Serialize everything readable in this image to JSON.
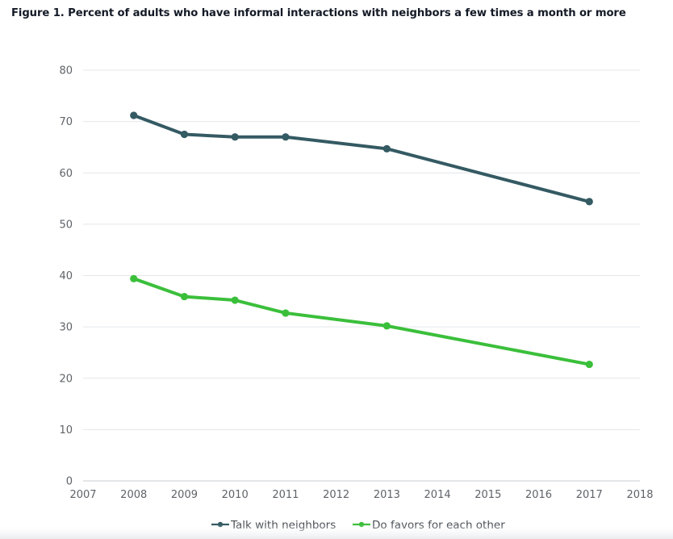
{
  "chart_data": {
    "type": "line",
    "title": "Figure 1. Percent of adults who have informal interactions with neighbors a few times a month or more",
    "xlabel": "",
    "ylabel": "",
    "x_ticks": [
      "2007",
      "2008",
      "2009",
      "2010",
      "2011",
      "2012",
      "2013",
      "2014",
      "2015",
      "2016",
      "2017",
      "2018"
    ],
    "y_ticks": [
      "0",
      "10",
      "20",
      "30",
      "40",
      "50",
      "60",
      "70",
      "80"
    ],
    "xlim": [
      2007,
      2018
    ],
    "ylim": [
      0,
      80
    ],
    "grid": "horizontal",
    "legend_position": "bottom-center",
    "series": [
      {
        "name": "Talk with neighbors",
        "color": "#345a63",
        "x": [
          2008,
          2009,
          2010,
          2011,
          2013,
          2017
        ],
        "values": [
          71.2,
          67.5,
          67.0,
          67.0,
          64.7,
          54.4
        ]
      },
      {
        "name": "Do favors for each other",
        "color": "#3bbf3b",
        "x": [
          2008,
          2009,
          2010,
          2011,
          2013,
          2017
        ],
        "values": [
          39.4,
          35.9,
          35.2,
          32.7,
          30.2,
          22.7
        ]
      }
    ]
  }
}
